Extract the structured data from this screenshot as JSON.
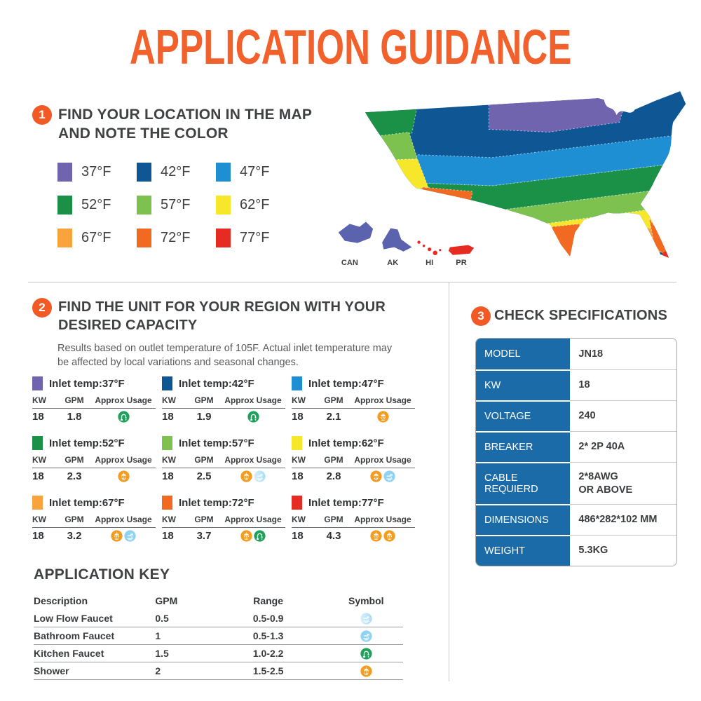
{
  "page": {
    "title": "APPLICATION GUIDANCE"
  },
  "colors": {
    "accent_orange": "#F15A24",
    "title_orange": "#F2612B",
    "spec_blue": "#1A6BA8",
    "heading_gray": "#3F4143"
  },
  "step1": {
    "number": "1",
    "heading": "FIND YOUR LOCATION IN THE MAP AND NOTE THE COLOR",
    "legend": [
      {
        "label": "37°F",
        "color": "#7164AE"
      },
      {
        "label": "42°F",
        "color": "#0E5694"
      },
      {
        "label": "47°F",
        "color": "#1E8FD2"
      },
      {
        "label": "52°F",
        "color": "#1B9148"
      },
      {
        "label": "57°F",
        "color": "#7DC24E"
      },
      {
        "label": "62°F",
        "color": "#F6E72A"
      },
      {
        "label": "67°F",
        "color": "#F8A33B"
      },
      {
        "label": "72°F",
        "color": "#F26A22"
      },
      {
        "label": "77°F",
        "color": "#E62C22"
      }
    ],
    "map_insets": [
      "CAN",
      "AK",
      "HI",
      "PR"
    ]
  },
  "step2": {
    "number": "2",
    "heading": "FIND THE UNIT FOR YOUR REGION WITH YOUR DESIRED CAPACITY",
    "subtitle": "Results based on outlet temperature of 105F. Actual inlet temperature may be affected by local variations and seasonal changes.",
    "col_headers": [
      "KW",
      "GPM",
      "Approx Usage"
    ],
    "units": [
      {
        "inlet": "Inlet temp:37°F",
        "color": "#7164AE",
        "kw": "18",
        "gpm": "1.8",
        "usage": [
          "kitchen-faucet"
        ]
      },
      {
        "inlet": "Inlet temp:42°F",
        "color": "#0E5694",
        "kw": "18",
        "gpm": "1.9",
        "usage": [
          "kitchen-faucet"
        ]
      },
      {
        "inlet": "Inlet temp:47°F",
        "color": "#1E8FD2",
        "kw": "18",
        "gpm": "2.1",
        "usage": [
          "shower"
        ]
      },
      {
        "inlet": "Inlet temp:52°F",
        "color": "#1B9148",
        "kw": "18",
        "gpm": "2.3",
        "usage": [
          "shower"
        ]
      },
      {
        "inlet": "Inlet temp:57°F",
        "color": "#7DC24E",
        "kw": "18",
        "gpm": "2.5",
        "usage": [
          "shower",
          "low-flow-faucet"
        ]
      },
      {
        "inlet": "Inlet temp:62°F",
        "color": "#F6E72A",
        "kw": "18",
        "gpm": "2.8",
        "usage": [
          "shower",
          "bathroom-faucet"
        ]
      },
      {
        "inlet": "Inlet temp:67°F",
        "color": "#F8A33B",
        "kw": "18",
        "gpm": "3.2",
        "usage": [
          "shower",
          "bathroom-faucet"
        ]
      },
      {
        "inlet": "Inlet temp:72°F",
        "color": "#F26A22",
        "kw": "18",
        "gpm": "3.7",
        "usage": [
          "shower",
          "kitchen-faucet"
        ]
      },
      {
        "inlet": "Inlet temp:77°F",
        "color": "#E62C22",
        "kw": "18",
        "gpm": "4.3",
        "usage": [
          "shower",
          "shower"
        ]
      }
    ]
  },
  "application_key": {
    "heading": "APPLICATION KEY",
    "headers": [
      "Description",
      "GPM",
      "Range",
      "Symbol"
    ],
    "rows": [
      {
        "description": "Low Flow Faucet",
        "gpm": "0.5",
        "range": "0.5-0.9",
        "symbol": "low-flow-faucet"
      },
      {
        "description": "Bathroom Faucet",
        "gpm": "1",
        "range": "0.5-1.3",
        "symbol": "bathroom-faucet"
      },
      {
        "description": "Kitchen Faucet",
        "gpm": "1.5",
        "range": "1.0-2.2",
        "symbol": "kitchen-faucet"
      },
      {
        "description": "Shower",
        "gpm": "2",
        "range": "1.5-2.5",
        "symbol": "shower"
      }
    ]
  },
  "step3": {
    "number": "3",
    "heading": "CHECK SPECIFICATIONS",
    "spec_rows": [
      {
        "label": "MODEL",
        "value": "JN18"
      },
      {
        "label": "KW",
        "value": "18"
      },
      {
        "label": "VOLTAGE",
        "value": "240"
      },
      {
        "label": "BREAKER",
        "value": "2* 2P 40A"
      },
      {
        "label": "CABLE REQUIERD",
        "value": "2*8AWG\nOR ABOVE"
      },
      {
        "label": "DIMENSIONS",
        "value": "486*282*102 MM"
      },
      {
        "label": "WEIGHT",
        "value": "5.3KG"
      }
    ]
  }
}
